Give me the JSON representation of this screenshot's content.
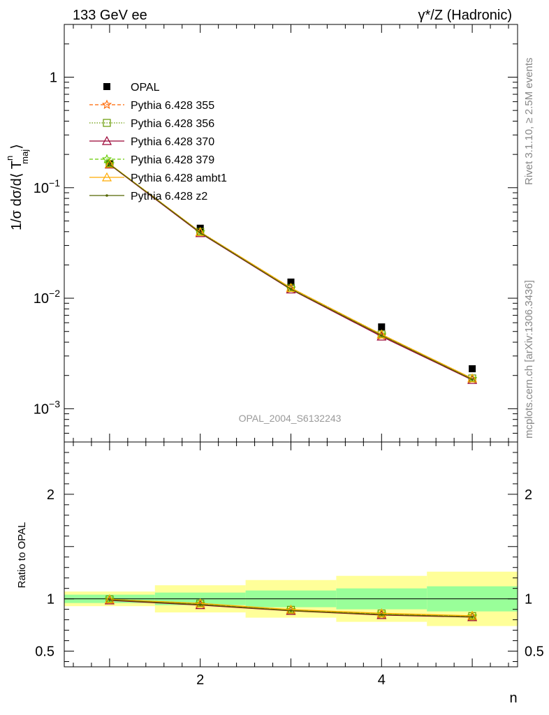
{
  "header": {
    "left_title": "133 GeV ee",
    "right_title": "γ*/Z (Hadronic)"
  },
  "side_labels": {
    "rivet": "Rivet 3.1.10, ≥ 2.5M events",
    "mcplots": "mcplots.cern.ch [arXiv:1306.3436]"
  },
  "watermark": "OPAL_2004_S6132243",
  "colors": {
    "opal": "#000000",
    "band_inner": "#99ff99",
    "band_outer": "#ffff99",
    "p355": "#ff6600",
    "p356": "#669900",
    "p370": "#990033",
    "p379": "#66cc00",
    "ambt1": "#ffaa00",
    "z2": "#556600"
  },
  "chart_data": [
    {
      "type": "scatter",
      "panel": "main",
      "ylabel_parts": [
        "1/σ dσ/d⟨ T",
        "n",
        "maj",
        "⟩"
      ],
      "xlabel": "n",
      "xlim": [
        0.5,
        5.5
      ],
      "ylim": [
        0.0005,
        3.0
      ],
      "yscale": "log",
      "y_tick_labels": [
        {
          "value": 1.0,
          "base": "1",
          "exp": ""
        },
        {
          "value": 0.1,
          "base": "10",
          "exp": "−1"
        },
        {
          "value": 0.01,
          "base": "10",
          "exp": "−2"
        },
        {
          "value": 0.001,
          "base": "10",
          "exp": "−3"
        }
      ],
      "x": [
        1,
        2,
        3,
        4,
        5
      ],
      "x_edges": [
        0.5,
        1.5,
        2.5,
        3.5,
        4.5,
        5.5
      ],
      "legend_position": "top-left",
      "series": [
        {
          "key": "opal",
          "name": "OPAL",
          "marker": "filled-square",
          "values": [
            0.165,
            0.043,
            0.014,
            0.0055,
            0.0023
          ]
        },
        {
          "key": "p355",
          "name": "Pythia 6.428 355",
          "marker": "star",
          "line": "dashed",
          "values": [
            0.163,
            0.0395,
            0.0122,
            0.0046,
            0.00185
          ]
        },
        {
          "key": "p356",
          "name": "Pythia 6.428 356",
          "marker": "open-square",
          "line": "dotted",
          "values": [
            0.164,
            0.0398,
            0.0124,
            0.0047,
            0.00188
          ]
        },
        {
          "key": "p370",
          "name": "Pythia 6.428 370",
          "marker": "open-triangle",
          "line": "solid",
          "values": [
            0.162,
            0.0388,
            0.012,
            0.0045,
            0.00182
          ]
        },
        {
          "key": "p379",
          "name": "Pythia 6.428 379",
          "marker": "star",
          "line": "dashed",
          "values": [
            0.164,
            0.0396,
            0.0123,
            0.0047,
            0.00187
          ]
        },
        {
          "key": "ambt1",
          "name": "Pythia 6.428 ambt1",
          "marker": "open-triangle",
          "line": "solid",
          "values": [
            0.164,
            0.0397,
            0.0124,
            0.0047,
            0.00188
          ]
        },
        {
          "key": "z2",
          "name": "Pythia 6.428 z2",
          "marker": "dot",
          "line": "solid",
          "values": [
            0.163,
            0.0392,
            0.0121,
            0.0046,
            0.00184
          ]
        }
      ]
    },
    {
      "type": "line",
      "panel": "ratio",
      "ylabel": "Ratio to OPAL",
      "xlabel": "n",
      "xlim": [
        0.5,
        5.5
      ],
      "ylim": [
        0.35,
        2.5
      ],
      "y_tick_labels": [
        "0.5",
        "1",
        "2"
      ],
      "y_tick_values": [
        0.5,
        1,
        2
      ],
      "x_tick_labels": [
        "2",
        "4"
      ],
      "x_tick_values": [
        2,
        4
      ],
      "bands": {
        "inner_low": [
          0.96,
          0.94,
          0.92,
          0.9,
          0.88
        ],
        "inner_high": [
          1.04,
          1.06,
          1.08,
          1.1,
          1.12
        ],
        "outer_low": [
          0.93,
          0.87,
          0.82,
          0.78,
          0.74
        ],
        "outer_high": [
          1.07,
          1.13,
          1.18,
          1.22,
          1.26
        ]
      },
      "x": [
        1,
        2,
        3,
        4,
        5
      ],
      "series": [
        {
          "key": "p355",
          "values": [
            0.99,
            0.95,
            0.89,
            0.85,
            0.83
          ]
        },
        {
          "key": "p356",
          "values": [
            0.995,
            0.955,
            0.895,
            0.86,
            0.835
          ]
        },
        {
          "key": "p370",
          "values": [
            0.985,
            0.94,
            0.885,
            0.845,
            0.825
          ]
        },
        {
          "key": "p379",
          "values": [
            0.995,
            0.955,
            0.895,
            0.86,
            0.835
          ]
        },
        {
          "key": "ambt1",
          "values": [
            0.995,
            0.957,
            0.897,
            0.862,
            0.838
          ]
        },
        {
          "key": "z2",
          "values": [
            0.99,
            0.945,
            0.888,
            0.85,
            0.828
          ]
        }
      ]
    }
  ]
}
